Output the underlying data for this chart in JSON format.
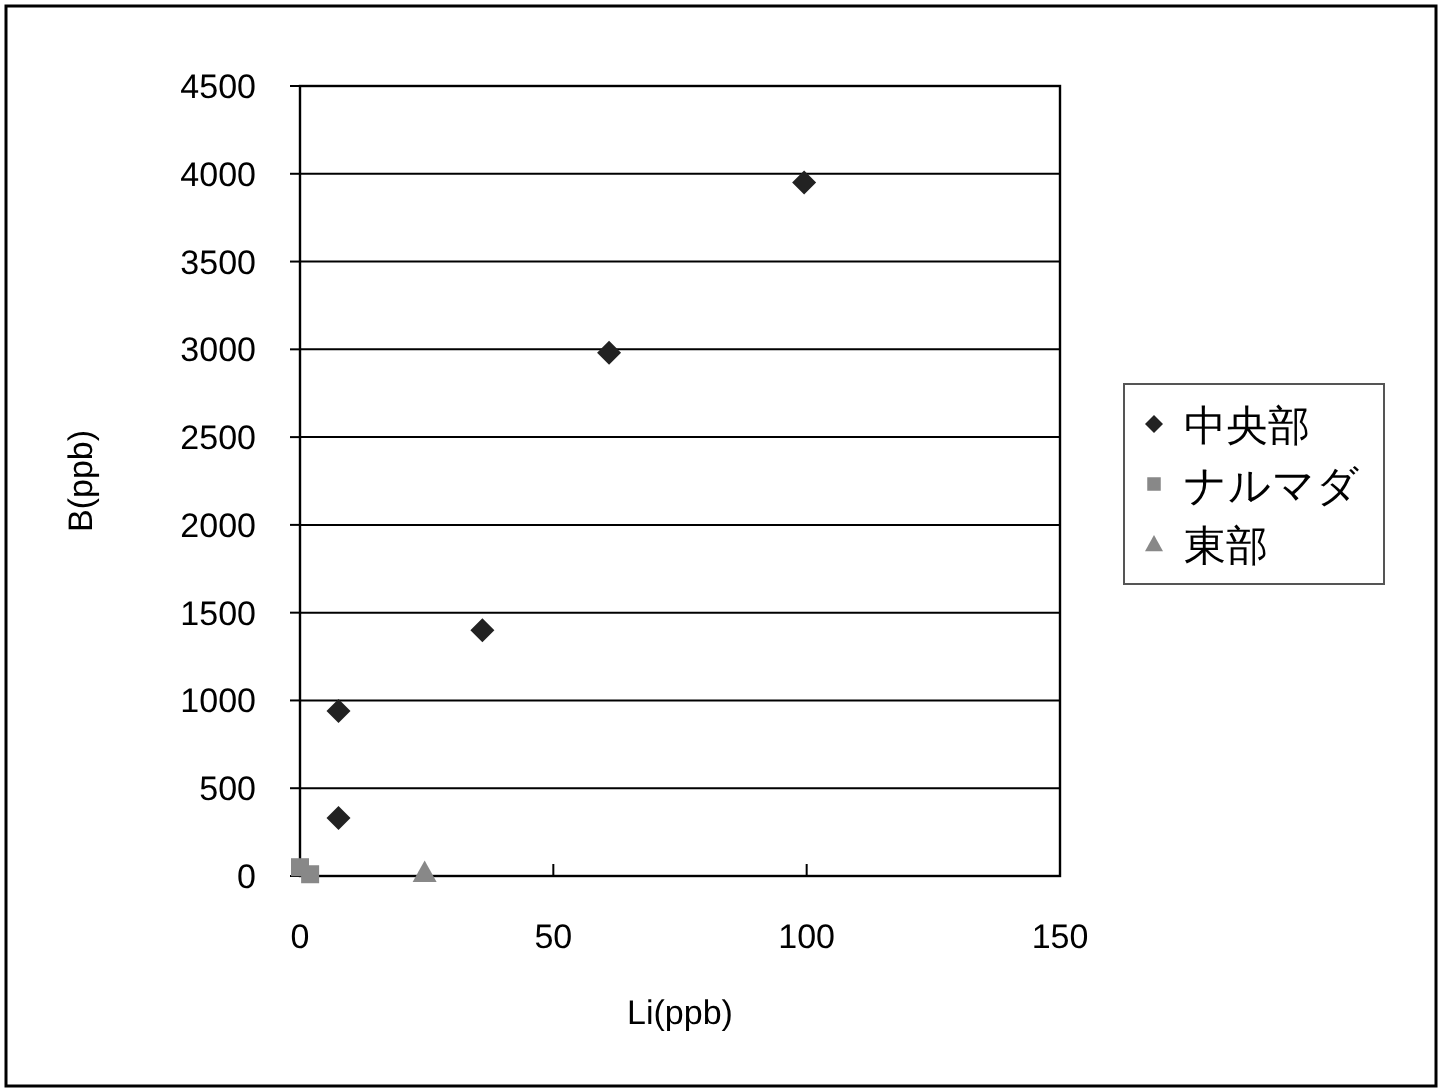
{
  "chart_data": {
    "type": "scatter",
    "xlabel": "Li(ppb)",
    "ylabel": "B(ppb)",
    "xlim": [
      0,
      150
    ],
    "xticks": [
      0,
      50,
      100,
      150
    ],
    "ylim": [
      0,
      4500
    ],
    "yticks": [
      0,
      500,
      1000,
      1500,
      2000,
      2500,
      3000,
      3500,
      4000,
      4500
    ],
    "grid": "y",
    "legend": "right",
    "series": [
      {
        "name": "中央部",
        "color": "#222222",
        "marker": "diamond",
        "x": [
          7.6,
          7.6,
          36,
          61,
          99.5
        ],
        "values": [
          330,
          940,
          1400,
          2980,
          3950
        ]
      },
      {
        "name": "ナルマダ",
        "color": "#888888",
        "marker": "square",
        "x": [
          0,
          2
        ],
        "values": [
          50,
          10
        ]
      },
      {
        "name": "東部",
        "color": "#888888",
        "marker": "triangle",
        "x": [
          24.6
        ],
        "values": [
          20
        ]
      }
    ]
  }
}
